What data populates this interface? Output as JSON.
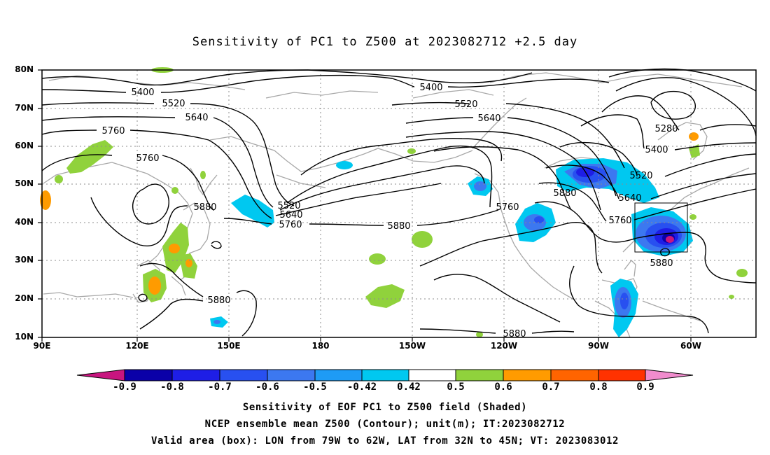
{
  "title": "Sensitivity of PC1 to Z500 at 2023082712 +2.5 day",
  "lat_labels": [
    "80N",
    "70N",
    "60N",
    "50N",
    "40N",
    "30N",
    "20N",
    "10N"
  ],
  "lon_labels": [
    "90E",
    "120E",
    "150E",
    "180",
    "150W",
    "120W",
    "90W",
    "60W"
  ],
  "contour_labels": [
    {
      "text": "5400"
    },
    {
      "text": "5520"
    },
    {
      "text": "5640"
    },
    {
      "text": "5760"
    },
    {
      "text": "5760"
    },
    {
      "text": "5880"
    },
    {
      "text": "5880"
    },
    {
      "text": "5520"
    },
    {
      "text": "5640"
    },
    {
      "text": "5760"
    },
    {
      "text": "5880"
    },
    {
      "text": "5400"
    },
    {
      "text": "5520"
    },
    {
      "text": "5640"
    },
    {
      "text": "5760"
    },
    {
      "text": "5880"
    },
    {
      "text": "5280"
    },
    {
      "text": "5400"
    },
    {
      "text": "5520"
    },
    {
      "text": "5640"
    },
    {
      "text": "5760"
    },
    {
      "text": "5880"
    },
    {
      "text": "5880"
    }
  ],
  "colorbar": {
    "colors": [
      "#c8157f",
      "#0a00a8",
      "#1e1ee6",
      "#2850f0",
      "#3c78f0",
      "#1e9bf5",
      "#00c8f0",
      "#ffffff",
      "#90d23c",
      "#ff9b00",
      "#ff6400",
      "#ff3200",
      "#ff0000",
      "#f08ccd"
    ],
    "labels": [
      "-0.9",
      "-0.8",
      "-0.7",
      "-0.6",
      "-0.5",
      "-0.42",
      "0.42",
      "0.5",
      "0.6",
      "0.7",
      "0.8",
      "0.9"
    ]
  },
  "caption": {
    "line1": "Sensitivity of EOF PC1 to Z500 field (Shaded)",
    "line2": "NCEP ensemble mean Z500 (Contour); unit(m); IT:2023082712",
    "line3": "Valid area (box): LON from 79W to 62W, LAT from 32N to 45N; VT: 2023083012"
  }
}
